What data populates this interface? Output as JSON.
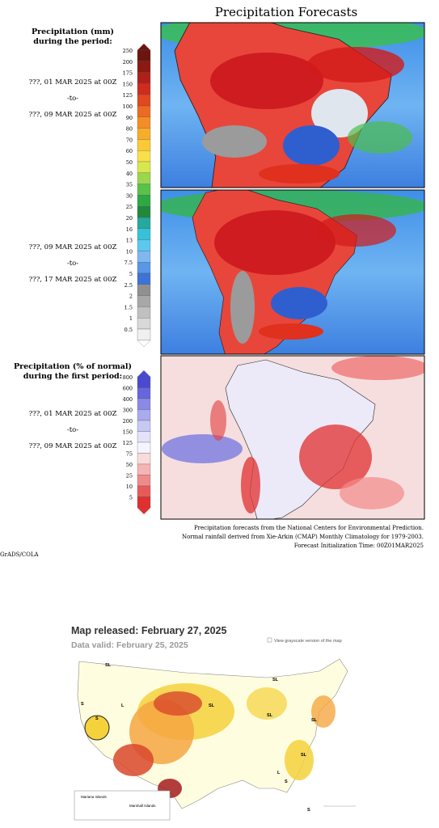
{
  "header": {
    "title": "Precipitation Forecasts"
  },
  "panels": [
    {
      "heading": [
        "Precipitation (mm)",
        "during the period:"
      ],
      "period": [
        "???, 01 MAR 2025 at 00Z",
        "-to-",
        "???, 09 MAR 2025 at 00Z"
      ]
    },
    {
      "period": [
        "???, 09 MAR 2025 at 00Z",
        "-to-",
        "???, 17 MAR 2025 at 00Z"
      ]
    },
    {
      "heading": [
        "Precipitation (% of normal)",
        "during the first period:"
      ],
      "period": [
        "???, 01 MAR 2025 at 00Z",
        "-to-",
        "???, 09 MAR 2025 at 00Z"
      ]
    }
  ],
  "legend_mm": [
    250,
    200,
    175,
    150,
    125,
    100,
    90,
    80,
    70,
    60,
    50,
    40,
    35,
    30,
    25,
    20,
    16,
    13,
    10,
    7.5,
    5,
    2.5,
    2,
    1.5,
    1,
    0.5
  ],
  "legend_pct": [
    800,
    600,
    400,
    300,
    200,
    150,
    125,
    75,
    50,
    25,
    10,
    5
  ],
  "footer": [
    "Precipitation forecasts from the National Centers for Environmental Prediction.",
    "Normal rainfall derived from Xie-Arkin (CMAP) Monthly Climatology for 1979-2003.",
    "Forecast Initialization Time: 00Z01MAR2025"
  ],
  "credit": "GrADS/COLA",
  "drought_map": {
    "released": "Map released: February 27, 2025",
    "valid": "Data valid: February 25, 2025",
    "grayscale_link": "View grayscale version of the map",
    "labels": [
      "SL",
      "S",
      "S",
      "L",
      "SL",
      "SL",
      "SL",
      "SL",
      "SL",
      "L",
      "S",
      "S"
    ],
    "insets": [
      "Mariana Islands",
      "Marshall Islands"
    ]
  }
}
